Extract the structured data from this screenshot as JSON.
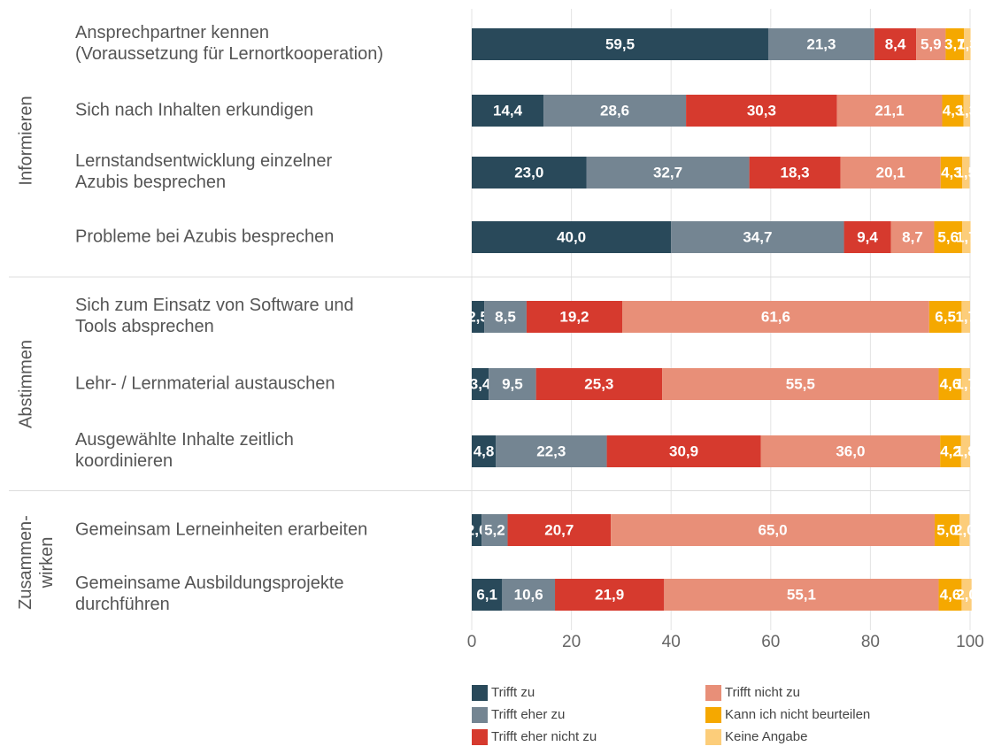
{
  "chart_data": {
    "type": "stacked-bar-horizontal",
    "groups": [
      {
        "name": "Informieren",
        "categories": [
          "Ansprechpartner kennen\n(Voraussetzung für Lernortkooperation)",
          "Sich nach Inhalten erkundigen",
          "Lernstandsentwicklung einzelner\nAzubis besprechen",
          "Probleme bei Azubis besprechen"
        ]
      },
      {
        "name": "Abstimmen",
        "categories": [
          "Sich zum Einsatz von Software und\nTools absprechen",
          "Lehr- / Lernmaterial austauschen",
          "Ausgewählte Inhalte zeitlich\nkoordinieren"
        ]
      },
      {
        "name": "Zusammen-\nwirken",
        "categories": [
          "Gemeinsam Lerneinheiten erarbeiten",
          "Gemeinsame Ausbildungsprojekte\ndurchführen"
        ]
      }
    ],
    "series": [
      {
        "name": "Trifft zu",
        "color": "#29495a",
        "values": [
          59.5,
          14.4,
          23.0,
          40.0,
          2.5,
          3.4,
          4.8,
          2.0,
          6.1
        ],
        "value_labels": [
          "59,5",
          "14,4",
          "23,0",
          "40,0",
          "2,5",
          "3,4",
          "4,8",
          "2,0",
          "6,1"
        ]
      },
      {
        "name": "Trifft eher zu",
        "color": "#748592",
        "values": [
          21.3,
          28.6,
          32.7,
          34.7,
          8.5,
          9.5,
          22.3,
          5.2,
          10.6
        ],
        "value_labels": [
          "21,3",
          "28,6",
          "32,7",
          "34,7",
          "8,5",
          "9,5",
          "22,3",
          "5,2",
          "10,6"
        ]
      },
      {
        "name": "Trifft eher nicht zu",
        "color": "#d63a2e",
        "values": [
          8.4,
          30.3,
          18.3,
          9.4,
          19.2,
          25.3,
          30.9,
          20.7,
          21.9
        ],
        "value_labels": [
          "8,4",
          "30,3",
          "18,3",
          "9,4",
          "19,2",
          "25,3",
          "30,9",
          "20,7",
          "21,9"
        ]
      },
      {
        "name": "Trifft nicht zu",
        "color": "#e88f78",
        "values": [
          5.9,
          21.1,
          20.1,
          8.7,
          61.6,
          55.5,
          36.0,
          65.0,
          55.1
        ],
        "value_labels": [
          "5,9",
          "21,1",
          "20,1",
          "8,7",
          "61,6",
          "55,5",
          "36,0",
          "65,0",
          "55,1"
        ]
      },
      {
        "name": "Kann ich nicht beurteilen",
        "color": "#f5a800",
        "values": [
          3.7,
          4.3,
          4.3,
          5.6,
          6.5,
          4.6,
          4.2,
          5.0,
          4.6
        ],
        "value_labels": [
          "3,7",
          "4,3",
          "4,3",
          "5,6",
          "6,5",
          "4,6",
          "4,2",
          "5,0",
          "4,6"
        ]
      },
      {
        "name": "Keine Angabe",
        "color": "#fccd7a",
        "values": [
          1.3,
          1.3,
          1.5,
          1.7,
          1.7,
          1.7,
          1.8,
          2.0,
          2.0
        ],
        "value_labels": [
          "1,3",
          "1,3",
          "1,5",
          "1,7",
          "1,7",
          "1,7",
          "1,8",
          "2,0",
          "2,0"
        ]
      }
    ],
    "xlim": [
      0,
      100
    ],
    "xticks": [
      0,
      20,
      40,
      60,
      80,
      100
    ],
    "grid": true
  }
}
